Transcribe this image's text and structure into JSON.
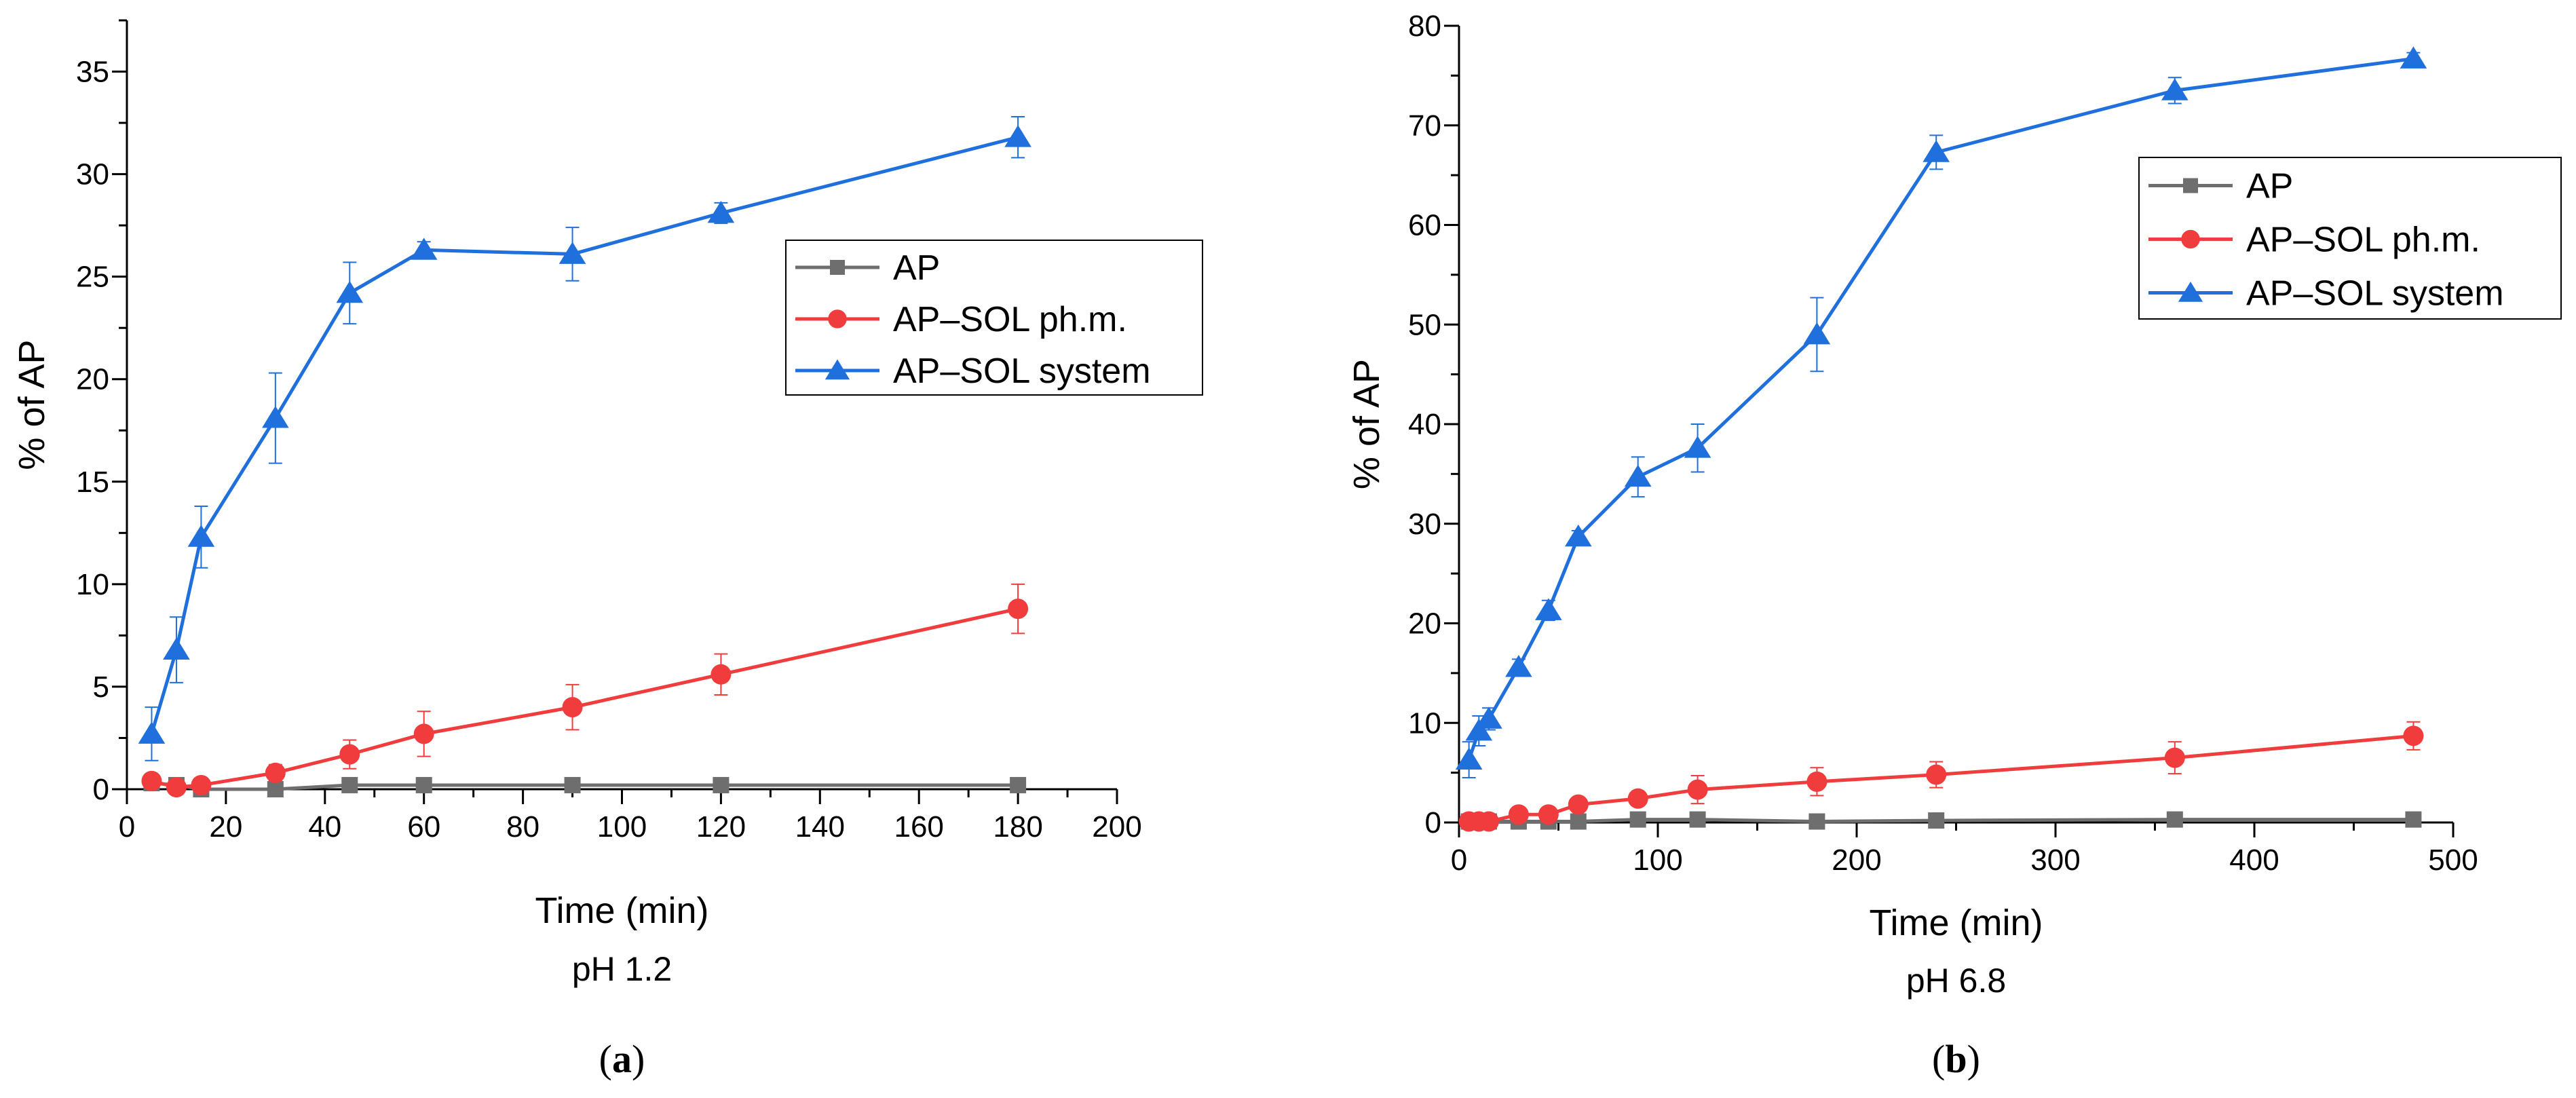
{
  "chart_data": [
    {
      "type": "line",
      "panel": "a",
      "panel_label_open": "(",
      "panel_label_letter": "a",
      "panel_label_close": ")",
      "condition": "pH 1.2",
      "xlabel": "Time (min)",
      "ylabel": "% of AP",
      "xlim": [
        0,
        200
      ],
      "ylim": [
        0,
        37.5
      ],
      "xticks": [
        0,
        20,
        40,
        60,
        80,
        100,
        120,
        140,
        160,
        180,
        200
      ],
      "yticks": [
        0,
        5,
        10,
        15,
        20,
        25,
        30,
        35
      ],
      "x_minor_step": 10,
      "y_minor_step": 2.5,
      "legend_position": "center-right",
      "series": [
        {
          "name": "AP",
          "color": "#6e6e6e",
          "marker": "square",
          "x": [
            5,
            10,
            15,
            30,
            45,
            60,
            90,
            120,
            180
          ],
          "y": [
            0.3,
            0.2,
            0.0,
            0.0,
            0.2,
            0.2,
            0.2,
            0.2,
            0.2
          ],
          "err": [
            0.2,
            0.15,
            0.1,
            0.1,
            0.15,
            0.1,
            0.15,
            0.1,
            0.1
          ]
        },
        {
          "name": "AP–SOL ph.m.",
          "color": "#f03c3c",
          "marker": "circle",
          "x": [
            5,
            10,
            15,
            30,
            45,
            60,
            90,
            120,
            180
          ],
          "y": [
            0.4,
            0.1,
            0.2,
            0.8,
            1.7,
            2.7,
            4.0,
            5.6,
            8.8
          ],
          "err": [
            0.3,
            0.2,
            0.2,
            0.4,
            0.7,
            1.1,
            1.1,
            1.0,
            1.2
          ]
        },
        {
          "name": "AP–SOL system",
          "color": "#1f6fdc",
          "marker": "triangle",
          "x": [
            5,
            10,
            15,
            30,
            45,
            60,
            90,
            120,
            180
          ],
          "y": [
            2.7,
            6.8,
            12.3,
            18.1,
            24.2,
            26.3,
            26.1,
            28.1,
            31.8
          ],
          "err": [
            1.3,
            1.6,
            1.5,
            2.2,
            1.5,
            0.4,
            1.3,
            0.5,
            1.0
          ]
        }
      ]
    },
    {
      "type": "line",
      "panel": "b",
      "panel_label_open": "(",
      "panel_label_letter": "b",
      "panel_label_close": ")",
      "condition": "pH 6.8",
      "xlabel": "Time (min)",
      "ylabel": "% of AP",
      "xlim": [
        0,
        500
      ],
      "ylim": [
        0,
        80
      ],
      "xticks": [
        0,
        100,
        200,
        300,
        400,
        500
      ],
      "yticks": [
        0,
        10,
        20,
        30,
        40,
        50,
        60,
        70,
        80
      ],
      "x_minor_step": 50,
      "y_minor_step": 5,
      "legend_position": "top-right",
      "series": [
        {
          "name": "AP",
          "color": "#6e6e6e",
          "marker": "square",
          "x": [
            5,
            10,
            15,
            30,
            45,
            60,
            90,
            120,
            180,
            240,
            360,
            480
          ],
          "y": [
            0.1,
            0.1,
            0.1,
            0.1,
            0.1,
            0.1,
            0.3,
            0.3,
            0.1,
            0.2,
            0.3,
            0.3
          ],
          "err": [
            0.1,
            0.1,
            0.1,
            0.1,
            0.1,
            0.1,
            0.2,
            0.2,
            0.1,
            0.1,
            0.2,
            0.2
          ]
        },
        {
          "name": "AP–SOL ph.m.",
          "color": "#f03c3c",
          "marker": "circle",
          "x": [
            5,
            10,
            15,
            30,
            45,
            60,
            90,
            120,
            180,
            240,
            360,
            480
          ],
          "y": [
            0.1,
            0.1,
            0.1,
            0.8,
            0.8,
            1.8,
            2.4,
            3.3,
            4.1,
            4.8,
            6.5,
            8.7
          ],
          "err": [
            0.2,
            0.2,
            0.2,
            0.3,
            0.4,
            0.4,
            0.5,
            1.4,
            1.4,
            1.3,
            1.6,
            1.4
          ]
        },
        {
          "name": "AP–SOL system",
          "color": "#1f6fdc",
          "marker": "triangle",
          "x": [
            5,
            10,
            15,
            30,
            45,
            60,
            90,
            120,
            180,
            240,
            360,
            480
          ],
          "y": [
            6.3,
            9.2,
            10.4,
            15.6,
            21.3,
            28.7,
            34.7,
            37.6,
            49.0,
            67.3,
            73.5,
            76.7
          ],
          "err": [
            1.8,
            1.5,
            1.1,
            0.8,
            1.0,
            0.6,
            2.0,
            2.4,
            3.7,
            1.7,
            1.3,
            0.6
          ]
        }
      ]
    }
  ]
}
